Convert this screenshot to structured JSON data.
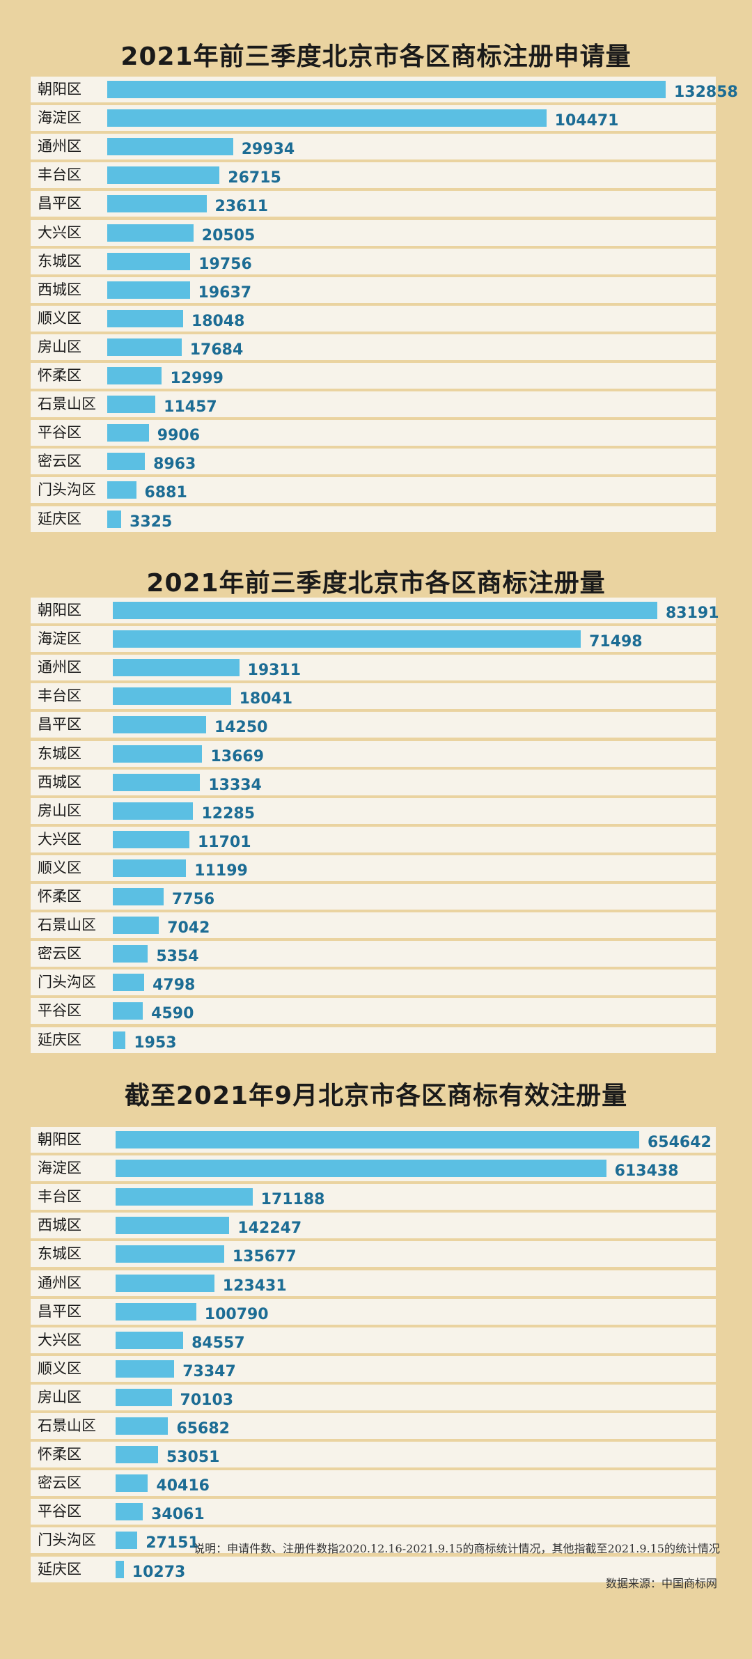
{
  "chart_data": [
    {
      "type": "bar",
      "orientation": "horizontal",
      "title": "2021年前三季度北京市各区商标注册申请量",
      "categories": [
        "朝阳区",
        "海淀区",
        "通州区",
        "丰台区",
        "昌平区",
        "大兴区",
        "东城区",
        "西城区",
        "顺义区",
        "房山区",
        "怀柔区",
        "石景山区",
        "平谷区",
        "密云区",
        "门头沟区",
        "延庆区"
      ],
      "values": [
        132858,
        104471,
        29934,
        26715,
        23611,
        20505,
        19756,
        19637,
        18048,
        17684,
        12999,
        11457,
        9906,
        8963,
        6881,
        3325
      ]
    },
    {
      "type": "bar",
      "orientation": "horizontal",
      "title": "2021年前三季度北京市各区商标注册量",
      "categories": [
        "朝阳区",
        "海淀区",
        "通州区",
        "丰台区",
        "昌平区",
        "东城区",
        "西城区",
        "房山区",
        "大兴区",
        "顺义区",
        "怀柔区",
        "石景山区",
        "密云区",
        "门头沟区",
        "平谷区",
        "延庆区"
      ],
      "values": [
        83191,
        71498,
        19311,
        18041,
        14250,
        13669,
        13334,
        12285,
        11701,
        11199,
        7756,
        7042,
        5354,
        4798,
        4590,
        1953
      ]
    },
    {
      "type": "bar",
      "orientation": "horizontal",
      "title": "截至2021年9月北京市各区商标有效注册量",
      "categories": [
        "朝阳区",
        "海淀区",
        "丰台区",
        "西城区",
        "东城区",
        "通州区",
        "昌平区",
        "大兴区",
        "顺义区",
        "房山区",
        "石景山区",
        "怀柔区",
        "密云区",
        "平谷区",
        "门头沟区",
        "延庆区"
      ],
      "values": [
        654642,
        613438,
        171188,
        142247,
        135677,
        123431,
        100790,
        84557,
        73347,
        70103,
        65682,
        53051,
        40416,
        34061,
        27151,
        10273
      ]
    }
  ],
  "footer": {
    "note": "说明：申请件数、注册件数指2020.12.16-2021.9.15的商标统计情况，其他指截至2021.9.15的统计情况",
    "source": "数据来源：中国商标网"
  },
  "colors": {
    "background": "#ead3a0",
    "bar": "#5bbfe3",
    "row": "#f7f3ea",
    "value_text": "#1c6c94"
  }
}
